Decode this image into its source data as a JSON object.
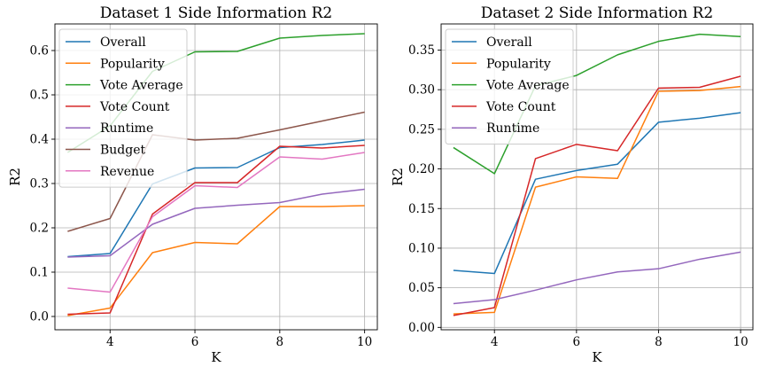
{
  "chart_data": [
    {
      "type": "line",
      "title": "Dataset 1 Side Information R2",
      "xlabel": "K",
      "ylabel": "R2",
      "x": [
        3,
        4,
        5,
        6,
        7,
        8,
        9,
        10
      ],
      "xlim": [
        2.7,
        10.3
      ],
      "ylim": [
        -0.03,
        0.66
      ],
      "xticks": [
        "4",
        "6",
        "8",
        "10"
      ],
      "xtick_values": [
        4,
        6,
        8,
        10
      ],
      "yticks": [
        "0.0",
        "0.1",
        "0.2",
        "0.3",
        "0.4",
        "0.5",
        "0.6"
      ],
      "ytick_values": [
        0.0,
        0.1,
        0.2,
        0.3,
        0.4,
        0.5,
        0.6
      ],
      "grid": true,
      "legend_position": "upper-left",
      "series": [
        {
          "name": "Overall",
          "color": "#1f77b4",
          "values": [
            0.135,
            0.142,
            0.299,
            0.335,
            0.336,
            0.381,
            0.388,
            0.398
          ]
        },
        {
          "name": "Popularity",
          "color": "#ff7f0e",
          "values": [
            0.002,
            0.019,
            0.144,
            0.167,
            0.164,
            0.248,
            0.248,
            0.25
          ]
        },
        {
          "name": "Vote Average",
          "color": "#2ca02c",
          "values": [
            0.37,
            0.43,
            0.553,
            0.597,
            0.598,
            0.628,
            0.634,
            0.638
          ]
        },
        {
          "name": "Vote Count",
          "color": "#d62728",
          "values": [
            0.005,
            0.008,
            0.231,
            0.302,
            0.302,
            0.384,
            0.38,
            0.386
          ]
        },
        {
          "name": "Runtime",
          "color": "#9467bd",
          "values": [
            0.134,
            0.137,
            0.208,
            0.244,
            0.251,
            0.257,
            0.276,
            0.287
          ]
        },
        {
          "name": "Budget",
          "color": "#8c564b",
          "values": [
            0.192,
            0.221,
            0.41,
            0.398,
            0.402,
            0.421,
            0.441,
            0.461
          ]
        },
        {
          "name": "Revenue",
          "color": "#e377c2",
          "values": [
            0.064,
            0.055,
            0.225,
            0.295,
            0.291,
            0.36,
            0.355,
            0.37
          ]
        }
      ]
    },
    {
      "type": "line",
      "title": "Dataset 2 Side Information R2",
      "xlabel": "K",
      "ylabel": "R2",
      "x": [
        3,
        4,
        5,
        6,
        7,
        8,
        9,
        10
      ],
      "xlim": [
        2.7,
        10.3
      ],
      "ylim": [
        -0.003,
        0.383
      ],
      "xticks": [
        "4",
        "6",
        "8",
        "10"
      ],
      "xtick_values": [
        4,
        6,
        8,
        10
      ],
      "yticks": [
        "0.00",
        "0.05",
        "0.10",
        "0.15",
        "0.20",
        "0.25",
        "0.30",
        "0.35"
      ],
      "ytick_values": [
        0.0,
        0.05,
        0.1,
        0.15,
        0.2,
        0.25,
        0.3,
        0.35
      ],
      "grid": true,
      "legend_position": "upper-left",
      "series": [
        {
          "name": "Overall",
          "color": "#1f77b4",
          "values": [
            0.072,
            0.068,
            0.187,
            0.198,
            0.206,
            0.259,
            0.264,
            0.271
          ]
        },
        {
          "name": "Popularity",
          "color": "#ff7f0e",
          "values": [
            0.017,
            0.019,
            0.177,
            0.19,
            0.188,
            0.298,
            0.299,
            0.304
          ]
        },
        {
          "name": "Vote Average",
          "color": "#2ca02c",
          "values": [
            0.227,
            0.194,
            0.305,
            0.318,
            0.344,
            0.361,
            0.37,
            0.367
          ]
        },
        {
          "name": "Vote Count",
          "color": "#d62728",
          "values": [
            0.015,
            0.025,
            0.213,
            0.231,
            0.223,
            0.302,
            0.303,
            0.317
          ]
        },
        {
          "name": "Runtime",
          "color": "#9467bd",
          "values": [
            0.03,
            0.035,
            0.047,
            0.06,
            0.07,
            0.074,
            0.086,
            0.095
          ]
        }
      ]
    }
  ]
}
